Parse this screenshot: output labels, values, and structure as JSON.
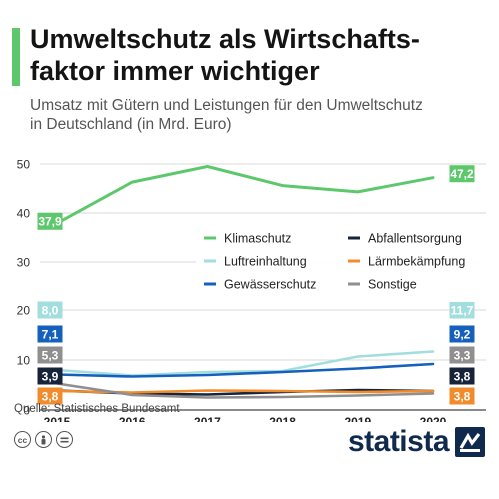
{
  "header": {
    "title_line1": "Umweltschutz als Wirtschafts-",
    "title_line2": "faktor immer wichtiger",
    "subtitle_line1": "Umsatz mit Gütern und Leistungen für den Umweltschutz",
    "subtitle_line2": "in Deutschland (in Mrd. Euro)"
  },
  "colors": {
    "accent": "#5dc86b",
    "Klimaschutz": "#5dc86b",
    "Luftreinhaltung": "#a3dede",
    "Gewässerschutz": "#1560bd",
    "Abfallentsorgung": "#16233b",
    "Lärmbekämpfung": "#f28b2c",
    "Sonstige": "#8f8f8f",
    "grid": "#d9d9d9"
  },
  "chart_data": {
    "type": "line",
    "title": "Umweltschutz als Wirtschaftsfaktor immer wichtiger",
    "subtitle": "Umsatz mit Gütern und Leistungen für den Umweltschutz in Deutschland (in Mrd. Euro)",
    "x": [
      "2015",
      "2016",
      "2017",
      "2018",
      "2019",
      "2020"
    ],
    "yticks": [
      0,
      10,
      20,
      30,
      40,
      50
    ],
    "ylim": [
      0,
      50
    ],
    "y_axis_break": true,
    "grid": true,
    "legend_position": "middle-right",
    "series": [
      {
        "name": "Klimaschutz",
        "values": [
          37.9,
          46.3,
          49.5,
          45.6,
          44.3,
          47.2
        ],
        "labels": [
          "37,9",
          "47,2"
        ]
      },
      {
        "name": "Luftreinhaltung",
        "values": [
          8.0,
          6.9,
          7.6,
          7.8,
          10.7,
          11.7
        ],
        "labels": [
          "8,0",
          "11,7"
        ]
      },
      {
        "name": "Gewässerschutz",
        "values": [
          7.1,
          6.7,
          7.0,
          7.6,
          8.3,
          9.2
        ],
        "labels": [
          "7,1",
          "9,2"
        ]
      },
      {
        "name": "Abfallentsorgung",
        "values": [
          3.9,
          3.3,
          3.1,
          3.6,
          4.0,
          3.8
        ],
        "labels": [
          "3,9",
          "3,8"
        ]
      },
      {
        "name": "Lärmbekämpfung",
        "values": [
          3.8,
          3.5,
          3.9,
          3.8,
          3.6,
          3.8
        ],
        "labels": [
          "3,8",
          "3,8"
        ]
      },
      {
        "name": "Sonstige",
        "values": [
          5.3,
          3.0,
          2.5,
          2.6,
          2.9,
          3.3
        ],
        "labels": [
          "5,3",
          "3,3"
        ]
      }
    ],
    "legend_order": [
      "Klimaschutz",
      "Abfallentsorgung",
      "Luftreinhaltung",
      "Lärmbekämpfung",
      "Gewässerschutz",
      "Sonstige"
    ]
  },
  "footer": {
    "source": "Quelle: Statistisches Bundesamt",
    "license_icons": [
      "cc-icon",
      "person-icon",
      "equals-icon"
    ],
    "brand": "statista"
  }
}
